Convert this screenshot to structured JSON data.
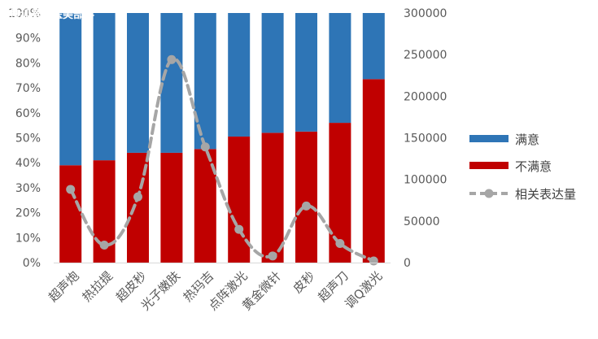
{
  "watermark": "搜狐号@医美部落",
  "colors": {
    "satisfied": "#2E75B6",
    "dissatisfied": "#C00000",
    "line": "#A6A6A6",
    "axis_text": "#595959",
    "axis_line": "#D9D9D9"
  },
  "chart_data": {
    "type": "bar",
    "stacked": true,
    "percent_stacked": true,
    "categories": [
      "超声炮",
      "热拉提",
      "超皮秒",
      "光子嫩肤",
      "热玛吉",
      "点阵激光",
      "黄金微针",
      "皮秒",
      "超声刀",
      "调Q激光"
    ],
    "series": [
      {
        "name": "满意",
        "type": "bar",
        "axis": "left",
        "color": "#2E75B6",
        "values": [
          0.61,
          0.59,
          0.56,
          0.56,
          0.545,
          0.495,
          0.48,
          0.475,
          0.44,
          0.265
        ]
      },
      {
        "name": "不满意",
        "type": "bar",
        "axis": "left",
        "color": "#C00000",
        "values": [
          0.39,
          0.41,
          0.44,
          0.44,
          0.455,
          0.505,
          0.52,
          0.525,
          0.56,
          0.735
        ]
      },
      {
        "name": "相关表达量",
        "type": "line",
        "axis": "right",
        "style": "dashed",
        "marker": "circle",
        "color": "#A6A6A6",
        "values": [
          88000,
          21000,
          79000,
          244000,
          139000,
          40000,
          8000,
          68000,
          23000,
          2000
        ]
      }
    ],
    "yaxis_left": {
      "ylim": [
        0,
        1
      ],
      "tick_labels": [
        "0%",
        "10%",
        "20%",
        "30%",
        "40%",
        "50%",
        "60%",
        "70%",
        "80%",
        "90%",
        "100%"
      ]
    },
    "yaxis_right": {
      "ylim": [
        0,
        300000
      ],
      "tick_labels": [
        "0",
        "50000",
        "100000",
        "150000",
        "200000",
        "250000",
        "300000"
      ]
    },
    "grid": false,
    "legend": "right"
  }
}
